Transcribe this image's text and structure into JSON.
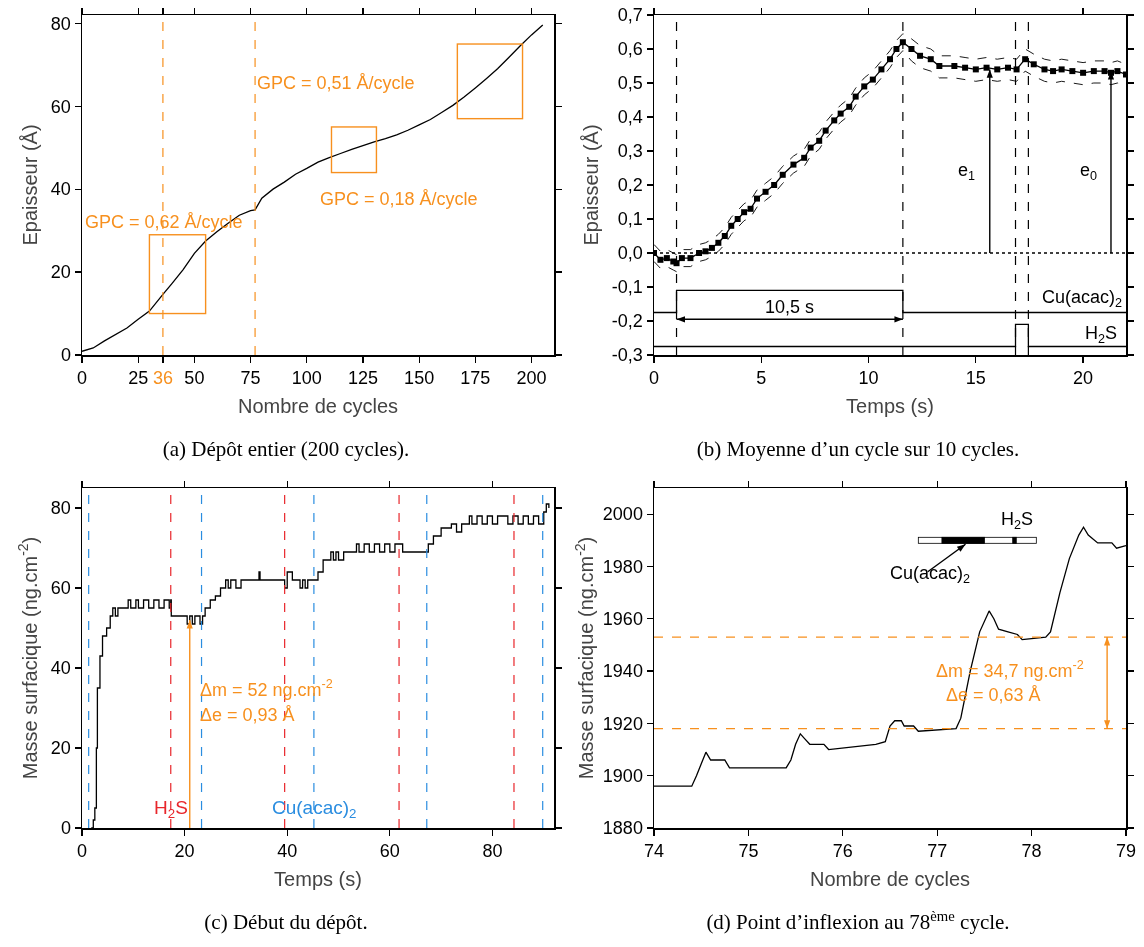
{
  "chart_data": [
    {
      "type": "line",
      "title": "(a) Dépôt entier (200 cycles).",
      "xlabel": "Nombre de cycles",
      "ylabel": "Epaisseur (Å)",
      "xlim": [
        0,
        210
      ],
      "ylim": [
        0,
        82
      ],
      "xticks": [
        0,
        25,
        36,
        50,
        75,
        100,
        125,
        150,
        175,
        200
      ],
      "yticks": [
        0,
        20,
        40,
        60,
        80
      ],
      "series": [
        {
          "color": "#000000",
          "x": [
            0,
            5,
            10,
            20,
            25,
            30,
            36,
            40,
            45,
            50,
            55,
            60,
            65,
            70,
            75,
            77,
            80,
            85,
            90,
            95,
            100,
            105,
            110,
            115,
            120,
            125,
            130,
            135,
            140,
            145,
            150,
            155,
            160,
            165,
            170,
            175,
            180,
            185,
            190,
            195,
            200,
            205
          ],
          "values": [
            0.9,
            1.7,
            3.4,
            6.5,
            8.6,
            10.6,
            14.6,
            17.2,
            20.6,
            24.5,
            27.5,
            29.7,
            31.8,
            33.7,
            34.8,
            35.0,
            37.8,
            40,
            41.7,
            43.6,
            45,
            46.5,
            47.6,
            48.6,
            49.6,
            50.5,
            51.4,
            52.2,
            53.1,
            54.2,
            55.5,
            56.8,
            58.5,
            60.2,
            62.2,
            64.4,
            66.7,
            69.1,
            71.8,
            74.6,
            77.2,
            79.6
          ]
        }
      ],
      "ref_lines": [
        {
          "axis": "x",
          "value": 36,
          "color": "#f7901e",
          "line_style": "dashed"
        },
        {
          "axis": "x",
          "value": 77,
          "color": "#f7901e",
          "line_style": "dashed"
        }
      ],
      "annotations": [
        "GPC = 0,62 Å/cycle",
        "GPC = 0,51 Å/cycle",
        "GPC = 0,18 Å/cycle"
      ]
    },
    {
      "type": "line",
      "title": "(b) Moyenne d’un cycle sur 10 cycles.",
      "xlabel": "Temps (s)",
      "ylabel": "Epaisseur (Å)",
      "marker": "square",
      "xlim": [
        0,
        22
      ],
      "ylim": [
        -0.3,
        0.7
      ],
      "xticks": [
        0,
        5,
        10,
        15,
        20
      ],
      "yticks": [
        {
          "value": -0.3,
          "label": "-0,3"
        },
        {
          "value": -0.2,
          "label": "-0,2"
        },
        {
          "value": -0.1,
          "label": "-0,1"
        },
        {
          "value": 0,
          "label": "0,0"
        },
        {
          "value": 0.1,
          "label": "0,1"
        },
        {
          "value": 0.2,
          "label": "0,2"
        },
        {
          "value": 0.3,
          "label": "0,3"
        },
        {
          "value": 0.4,
          "label": "0,4"
        },
        {
          "value": 0.5,
          "label": "0,5"
        },
        {
          "value": 0.6,
          "label": "0,6"
        },
        {
          "value": 0.7,
          "label": "0,7"
        }
      ],
      "series": [
        {
          "color": "#000000",
          "x": [
            0,
            0.3,
            0.6,
            0.9,
            1.05,
            1.3,
            1.7,
            2.1,
            2.4,
            2.7,
            3.0,
            3.3,
            3.6,
            3.9,
            4.2,
            4.5,
            4.8,
            5.2,
            5.6,
            6.0,
            6.5,
            7.0,
            7.3,
            7.7,
            8.0,
            8.4,
            8.7,
            9.1,
            9.4,
            9.8,
            10.2,
            10.6,
            11.0,
            11.3,
            11.6,
            12.0,
            12.4,
            12.9,
            13.3,
            14.0,
            14.5,
            15.0,
            15.5,
            16.0,
            16.5,
            16.9,
            17.3,
            17.7,
            18.2,
            18.6,
            19.0,
            19.5,
            20.0,
            20.5,
            21.0,
            21.3,
            21.6,
            22.0
          ],
          "values": [
            0,
            -0.02,
            -0.015,
            -0.025,
            -0.03,
            -0.015,
            -0.015,
            0,
            0.005,
            0.015,
            0.03,
            0.05,
            0.08,
            0.1,
            0.12,
            0.13,
            0.16,
            0.18,
            0.2,
            0.23,
            0.26,
            0.28,
            0.31,
            0.33,
            0.36,
            0.39,
            0.41,
            0.43,
            0.46,
            0.49,
            0.51,
            0.54,
            0.57,
            0.6,
            0.62,
            0.6,
            0.58,
            0.57,
            0.55,
            0.55,
            0.545,
            0.54,
            0.545,
            0.54,
            0.545,
            0.54,
            0.57,
            0.555,
            0.54,
            0.535,
            0.54,
            0.535,
            0.53,
            0.535,
            0.535,
            0.53,
            0.535,
            0.525
          ]
        },
        {
          "color": "#000000",
          "marker": "none",
          "line_style": "dashed",
          "x": [
            0,
            0.3,
            0.6,
            0.9,
            1.05,
            1.3,
            1.7,
            2.1,
            2.4,
            2.7,
            3.0,
            3.3,
            3.6,
            3.9,
            4.2,
            4.5,
            4.8,
            5.2,
            5.6,
            6.0,
            6.5,
            7.0,
            7.3,
            7.7,
            8.0,
            8.4,
            8.7,
            9.1,
            9.4,
            9.8,
            10.2,
            10.6,
            11.0,
            11.3,
            11.6,
            12.0,
            12.4,
            12.9,
            13.3,
            14.0,
            14.5,
            15.0,
            15.5,
            16.0,
            16.5,
            16.9,
            17.3,
            17.7,
            18.2,
            18.6,
            19.0,
            19.5,
            20.0,
            20.5,
            21.0,
            21.3,
            21.6,
            22.0
          ],
          "values": [
            0.025,
            0.005,
            0.01,
            0,
            -0.005,
            0.01,
            0.01,
            0.025,
            0.03,
            0.04,
            0.055,
            0.075,
            0.105,
            0.125,
            0.145,
            0.155,
            0.185,
            0.205,
            0.225,
            0.255,
            0.285,
            0.305,
            0.335,
            0.355,
            0.385,
            0.415,
            0.435,
            0.455,
            0.485,
            0.515,
            0.535,
            0.565,
            0.595,
            0.625,
            0.645,
            0.63,
            0.61,
            0.6,
            0.58,
            0.58,
            0.575,
            0.57,
            0.575,
            0.57,
            0.575,
            0.57,
            0.6,
            0.585,
            0.57,
            0.565,
            0.57,
            0.565,
            0.56,
            0.565,
            0.565,
            0.56,
            0.565,
            0.555
          ]
        },
        {
          "color": "#000000",
          "marker": "none",
          "line_style": "dashed",
          "x": [
            0,
            0.3,
            0.6,
            0.9,
            1.05,
            1.3,
            1.7,
            2.1,
            2.4,
            2.7,
            3.0,
            3.3,
            3.6,
            3.9,
            4.2,
            4.5,
            4.8,
            5.2,
            5.6,
            6.0,
            6.5,
            7.0,
            7.3,
            7.7,
            8.0,
            8.4,
            8.7,
            9.1,
            9.4,
            9.8,
            10.2,
            10.6,
            11.0,
            11.3,
            11.6,
            12.0,
            12.4,
            12.9,
            13.3,
            14.0,
            14.5,
            15.0,
            15.5,
            16.0,
            16.5,
            16.9,
            17.3,
            17.7,
            18.2,
            18.6,
            19.0,
            19.5,
            20.0,
            20.5,
            21.0,
            21.3,
            21.6,
            22.0
          ],
          "values": [
            -0.025,
            -0.045,
            -0.04,
            -0.05,
            -0.055,
            -0.04,
            -0.04,
            -0.025,
            -0.02,
            -0.01,
            0.005,
            0.025,
            0.055,
            0.075,
            0.095,
            0.105,
            0.135,
            0.155,
            0.175,
            0.205,
            0.235,
            0.255,
            0.285,
            0.305,
            0.335,
            0.365,
            0.385,
            0.405,
            0.435,
            0.465,
            0.485,
            0.515,
            0.545,
            0.575,
            0.595,
            0.565,
            0.545,
            0.535,
            0.515,
            0.515,
            0.51,
            0.505,
            0.51,
            0.505,
            0.51,
            0.505,
            0.535,
            0.52,
            0.505,
            0.5,
            0.505,
            0.5,
            0.495,
            0.5,
            0.5,
            0.495,
            0.5,
            0.49
          ]
        },
        {
          "color": "#000000",
          "marker": "none",
          "x": [
            0,
            1.05,
            1.05,
            11.6,
            11.6,
            22
          ],
          "values": [
            -0.175,
            -0.175,
            -0.11,
            -0.11,
            -0.175,
            -0.175
          ]
        },
        {
          "color": "#000000",
          "marker": "none",
          "x": [
            0,
            16.85,
            16.85,
            17.45,
            17.45,
            22
          ],
          "values": [
            -0.275,
            -0.275,
            -0.21,
            -0.21,
            -0.275,
            -0.275
          ]
        }
      ],
      "ref_lines": [
        {
          "axis": "x",
          "value": 1.05,
          "line_style": "dashed"
        },
        {
          "axis": "x",
          "value": 11.6,
          "line_style": "dashed"
        },
        {
          "axis": "x",
          "value": 16.85,
          "line_style": "dashed"
        },
        {
          "axis": "x",
          "value": 17.45,
          "line_style": "dashed"
        },
        {
          "axis": "y",
          "value": 0,
          "line_style": "dotted"
        }
      ],
      "annotations": [
        "e$_{1}$",
        "e$_{0}$",
        "10,5 s",
        "Cu(acac)$_{2}$",
        "H$_{2}$S"
      ]
    },
    {
      "type": "step",
      "title": "(c) Début du dépôt.",
      "xlabel": "Temps (s)",
      "ylabel": "Masse surfacique (ng.cm$^{-2}$)",
      "xlim": [
        0,
        92
      ],
      "ylim": [
        0,
        85
      ],
      "xticks": [
        0,
        20,
        40,
        60,
        80
      ],
      "yticks": [
        0,
        20,
        40,
        60,
        80
      ],
      "series": [
        {
          "color": "#000000",
          "x": [
            1.8,
            2.2,
            2.5,
            2.8,
            3,
            3.5,
            4,
            4.8,
            5.5,
            6,
            6.5,
            7,
            8,
            9,
            9.5,
            10.5,
            11,
            12,
            13,
            14,
            15,
            16,
            17,
            17.3,
            17.4,
            20,
            20.5,
            21,
            21.5,
            22,
            23,
            23.5,
            24,
            25,
            26,
            27,
            28,
            28.5,
            29,
            30,
            31,
            33,
            34.3,
            34.5,
            34.7,
            39,
            39.5,
            40,
            40.5,
            41,
            42,
            42.5,
            43,
            43.5,
            44,
            45.2,
            46,
            47,
            48,
            48.5,
            49,
            49.5,
            50,
            51,
            53,
            53.5,
            54,
            55,
            56,
            57,
            58,
            59,
            60,
            61,
            62,
            62.5,
            64,
            67,
            67.5,
            68.5,
            69,
            70,
            71,
            72,
            73,
            74,
            75,
            75.5,
            76,
            77,
            78,
            79,
            80,
            81,
            83,
            84,
            85,
            86,
            87,
            88,
            89,
            90,
            90.5,
            91
          ],
          "values": [
            0,
            2,
            5,
            20,
            35,
            43,
            48,
            50,
            53,
            55,
            53,
            55,
            55,
            57,
            55,
            57,
            55,
            57,
            55,
            57,
            55,
            57,
            55,
            57,
            53,
            53,
            51,
            53,
            51,
            53,
            51,
            53,
            55,
            57,
            58,
            60,
            62,
            60,
            62,
            60,
            62,
            62,
            62,
            64,
            62,
            62,
            60,
            64,
            64,
            62,
            62,
            60,
            62,
            60,
            62,
            62,
            64,
            67,
            67,
            69,
            67,
            69,
            67,
            69,
            69,
            71,
            69,
            71,
            69,
            71,
            69,
            71,
            69,
            71,
            71,
            69,
            69,
            69,
            71,
            73,
            73,
            75,
            75,
            76,
            74,
            76,
            76,
            78,
            76,
            78,
            76,
            78,
            76,
            78,
            76,
            78,
            76,
            78,
            76,
            78,
            76,
            79,
            81,
            80
          ]
        }
      ],
      "ref_lines": [
        {
          "axis": "x",
          "value": 1.3,
          "color": "#2a8de0",
          "line_style": "dashed"
        },
        {
          "axis": "x",
          "value": 17.3,
          "color": "#e8262b",
          "line_style": "dashed",
          "label": "H$_{2}$S"
        },
        {
          "axis": "x",
          "value": 23.3,
          "color": "#2a8de0",
          "line_style": "dashed"
        },
        {
          "axis": "x",
          "value": 39.5,
          "color": "#e8262b",
          "line_style": "dashed"
        },
        {
          "axis": "x",
          "value": 45.2,
          "color": "#2a8de0",
          "line_style": "dashed",
          "label": "Cu(acac)$_{2}$"
        },
        {
          "axis": "x",
          "value": 61.8,
          "color": "#e8262b",
          "line_style": "dashed"
        },
        {
          "axis": "x",
          "value": 67.2,
          "color": "#2a8de0",
          "line_style": "dashed"
        },
        {
          "axis": "x",
          "value": 84.2,
          "color": "#e8262b",
          "line_style": "dashed"
        },
        {
          "axis": "x",
          "value": 89.8,
          "color": "#2a8de0",
          "line_style": "dashed"
        }
      ],
      "annotations": [
        "Δm = 52 ng.cm$^{-2}$",
        "Δe = 0,93 Å"
      ]
    },
    {
      "type": "line",
      "title": "(d) Point d’inflexion au 78$^{ème}$ cycle.",
      "xlabel": "Nombre de cycles",
      "ylabel": "Masse surfacique (ng.cm$^{-2}$)",
      "xlim": [
        74,
        79
      ],
      "ylim": [
        1880,
        2010
      ],
      "xticks": [
        74,
        75,
        76,
        77,
        78,
        79
      ],
      "yticks": [
        1880,
        1900,
        1920,
        1940,
        1960,
        1980,
        2000
      ],
      "series": [
        {
          "color": "#000000",
          "x": [
            74,
            74.4,
            74.45,
            74.55,
            74.6,
            74.75,
            74.8,
            75.4,
            75.45,
            75.5,
            75.55,
            75.6,
            75.65,
            75.8,
            75.85,
            76.35,
            76.45,
            76.5,
            76.55,
            76.62,
            76.65,
            76.75,
            76.8,
            77.2,
            77.25,
            77.35,
            77.45,
            77.55,
            77.6,
            77.65,
            77.75,
            77.85,
            77.9,
            78.15,
            78.2,
            78.3,
            78.4,
            78.5,
            78.55,
            78.6,
            78.7,
            78.85,
            78.9,
            79
          ],
          "values": [
            1896,
            1896,
            1900,
            1909,
            1906,
            1906,
            1903,
            1903,
            1906,
            1912,
            1916,
            1914,
            1912,
            1912,
            1910,
            1912,
            1913,
            1919,
            1921,
            1921,
            1919,
            1919,
            1917,
            1918,
            1922,
            1940,
            1955,
            1963,
            1960,
            1956,
            1955,
            1954,
            1952,
            1953,
            1955,
            1970,
            1983,
            1992,
            1995,
            1992,
            1989,
            1989,
            1987,
            1988
          ]
        }
      ],
      "ref_lines": [
        {
          "axis": "y",
          "value": 1953,
          "color": "#f7901e",
          "line_style": "dashed"
        },
        {
          "axis": "y",
          "value": 1918,
          "color": "#f7901e",
          "line_style": "dashed"
        }
      ],
      "annotations": [
        "Δm = 34,7 ng.cm$^{-2}$",
        "Δe = 0,63 Å",
        "H$_{2}$S",
        "Cu(acac)$_{2}$"
      ]
    }
  ]
}
